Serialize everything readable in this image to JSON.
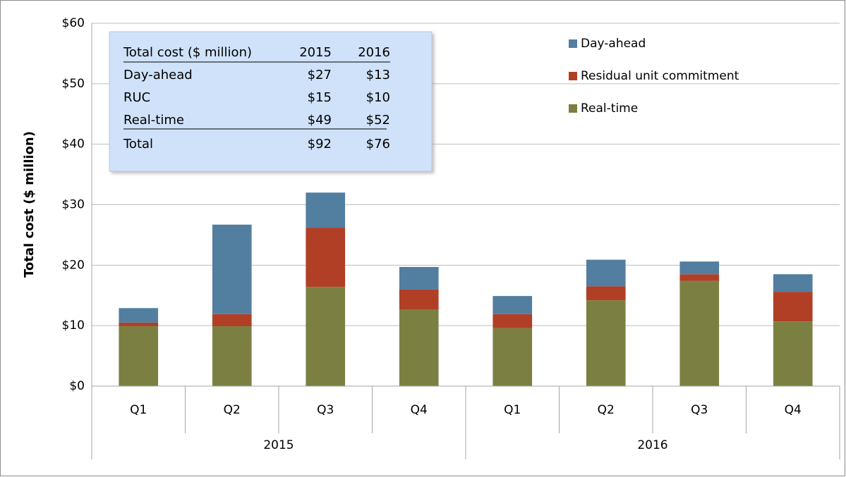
{
  "chart_data": {
    "type": "stacked_bar",
    "y_axis_label": "Total cost ($ million)",
    "categories": [
      "Q1",
      "Q2",
      "Q3",
      "Q4",
      "Q1",
      "Q2",
      "Q3",
      "Q4"
    ],
    "category_groups": [
      "2015",
      "2016"
    ],
    "series": [
      {
        "name": "Day-ahead",
        "color": "#527ea0",
        "values": [
          2.4,
          14.8,
          5.8,
          3.7,
          3.0,
          4.4,
          2.1,
          2.9
        ]
      },
      {
        "name": "Residual unit commitment",
        "color": "#b03f26",
        "values": [
          0.6,
          2.0,
          9.8,
          3.3,
          2.3,
          2.3,
          1.1,
          4.9
        ]
      },
      {
        "name": "Real-time",
        "color": "#7b8042",
        "values": [
          9.9,
          9.9,
          16.4,
          12.7,
          9.6,
          14.2,
          17.4,
          10.7
        ]
      }
    ],
    "ylim": [
      0,
      60
    ],
    "yticks": [
      {
        "value": 0,
        "label": "$0"
      },
      {
        "value": 10,
        "label": "$10"
      },
      {
        "value": 20,
        "label": "$20"
      },
      {
        "value": 30,
        "label": "$30"
      },
      {
        "value": 40,
        "label": "$40"
      },
      {
        "value": 50,
        "label": "$50"
      },
      {
        "value": 60,
        "label": "$60"
      }
    ],
    "grid": true,
    "legend": "top-right",
    "table": {
      "header": [
        "Total cost ($ million)",
        "2015",
        "2016"
      ],
      "rows": [
        [
          "Day-ahead",
          "$27",
          "$13"
        ],
        [
          "RUC",
          "$15",
          "$10"
        ],
        [
          "Real-time",
          "$49",
          "$52"
        ],
        [
          "Total",
          "$92",
          "$76"
        ]
      ]
    }
  }
}
